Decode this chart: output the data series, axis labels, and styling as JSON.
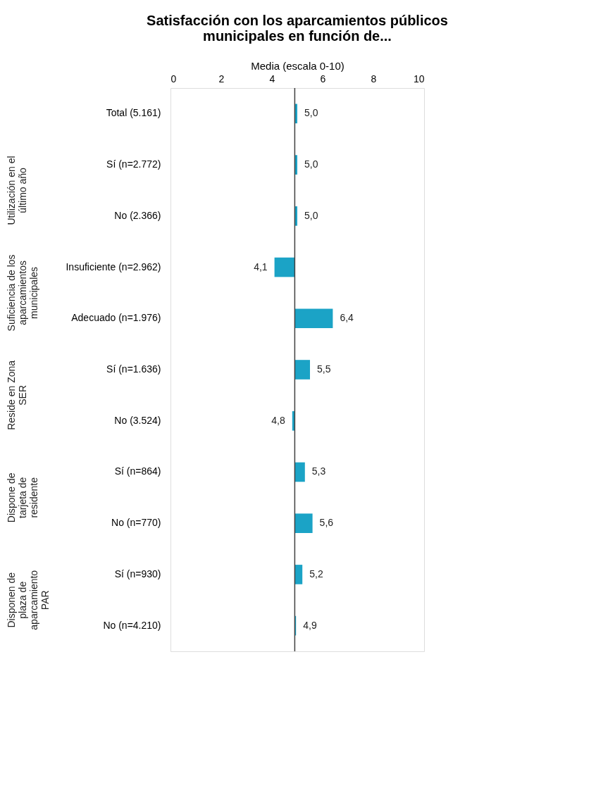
{
  "chart_data": {
    "type": "bar",
    "orientation": "horizontal",
    "title": [
      "Satisfacción con los aparcamientos públicos",
      "municipales en función de..."
    ],
    "xlabel": "Media (escala 0-10)",
    "categories": [
      "Total (5.161)",
      "Sí (n=2.772)",
      "No (2.366)",
      "Insuficiente  (n=2.962)",
      "Adecuado (n=1.976)",
      "Sí (n=1.636)",
      "No (3.524)",
      "Sí  (n=864)",
      "No (n=770)",
      "Sí (n=930)",
      "No (n=4.210)"
    ],
    "base": [
      4.9,
      4.9,
      4.9,
      4.9,
      4.9,
      4.9,
      4.9,
      4.9,
      4.9,
      4.9,
      4.9
    ],
    "values": [
      0.1,
      0.1,
      0.1,
      -0.8,
      1.5,
      0.6,
      -0.1,
      0.4,
      0.7,
      0.3,
      0.05
    ],
    "value_labels": [
      "5,0",
      "5,0",
      "5,0",
      "4,1",
      "6,4",
      "5,5",
      "4,8",
      "5,3",
      "5,6",
      "5,2",
      "4,9"
    ],
    "color": "#1ba3c6",
    "xlim": [
      0,
      10
    ],
    "xticks": [
      0,
      2,
      4,
      6,
      8,
      10
    ],
    "ref_lines": [
      {
        "axis": "x",
        "value": 4.9,
        "label": null,
        "color": "#404040"
      }
    ],
    "annotations": [
      "Utilización en el\núltimo año",
      "Suficiencia de los\naparcamientos\nmunicipales",
      "Reside en Zona\nSER",
      "Dispone de\ntarjeta de\nresidente",
      "Disponen de\nplaza de\naparcamiento\nPAR"
    ],
    "grid": false
  }
}
